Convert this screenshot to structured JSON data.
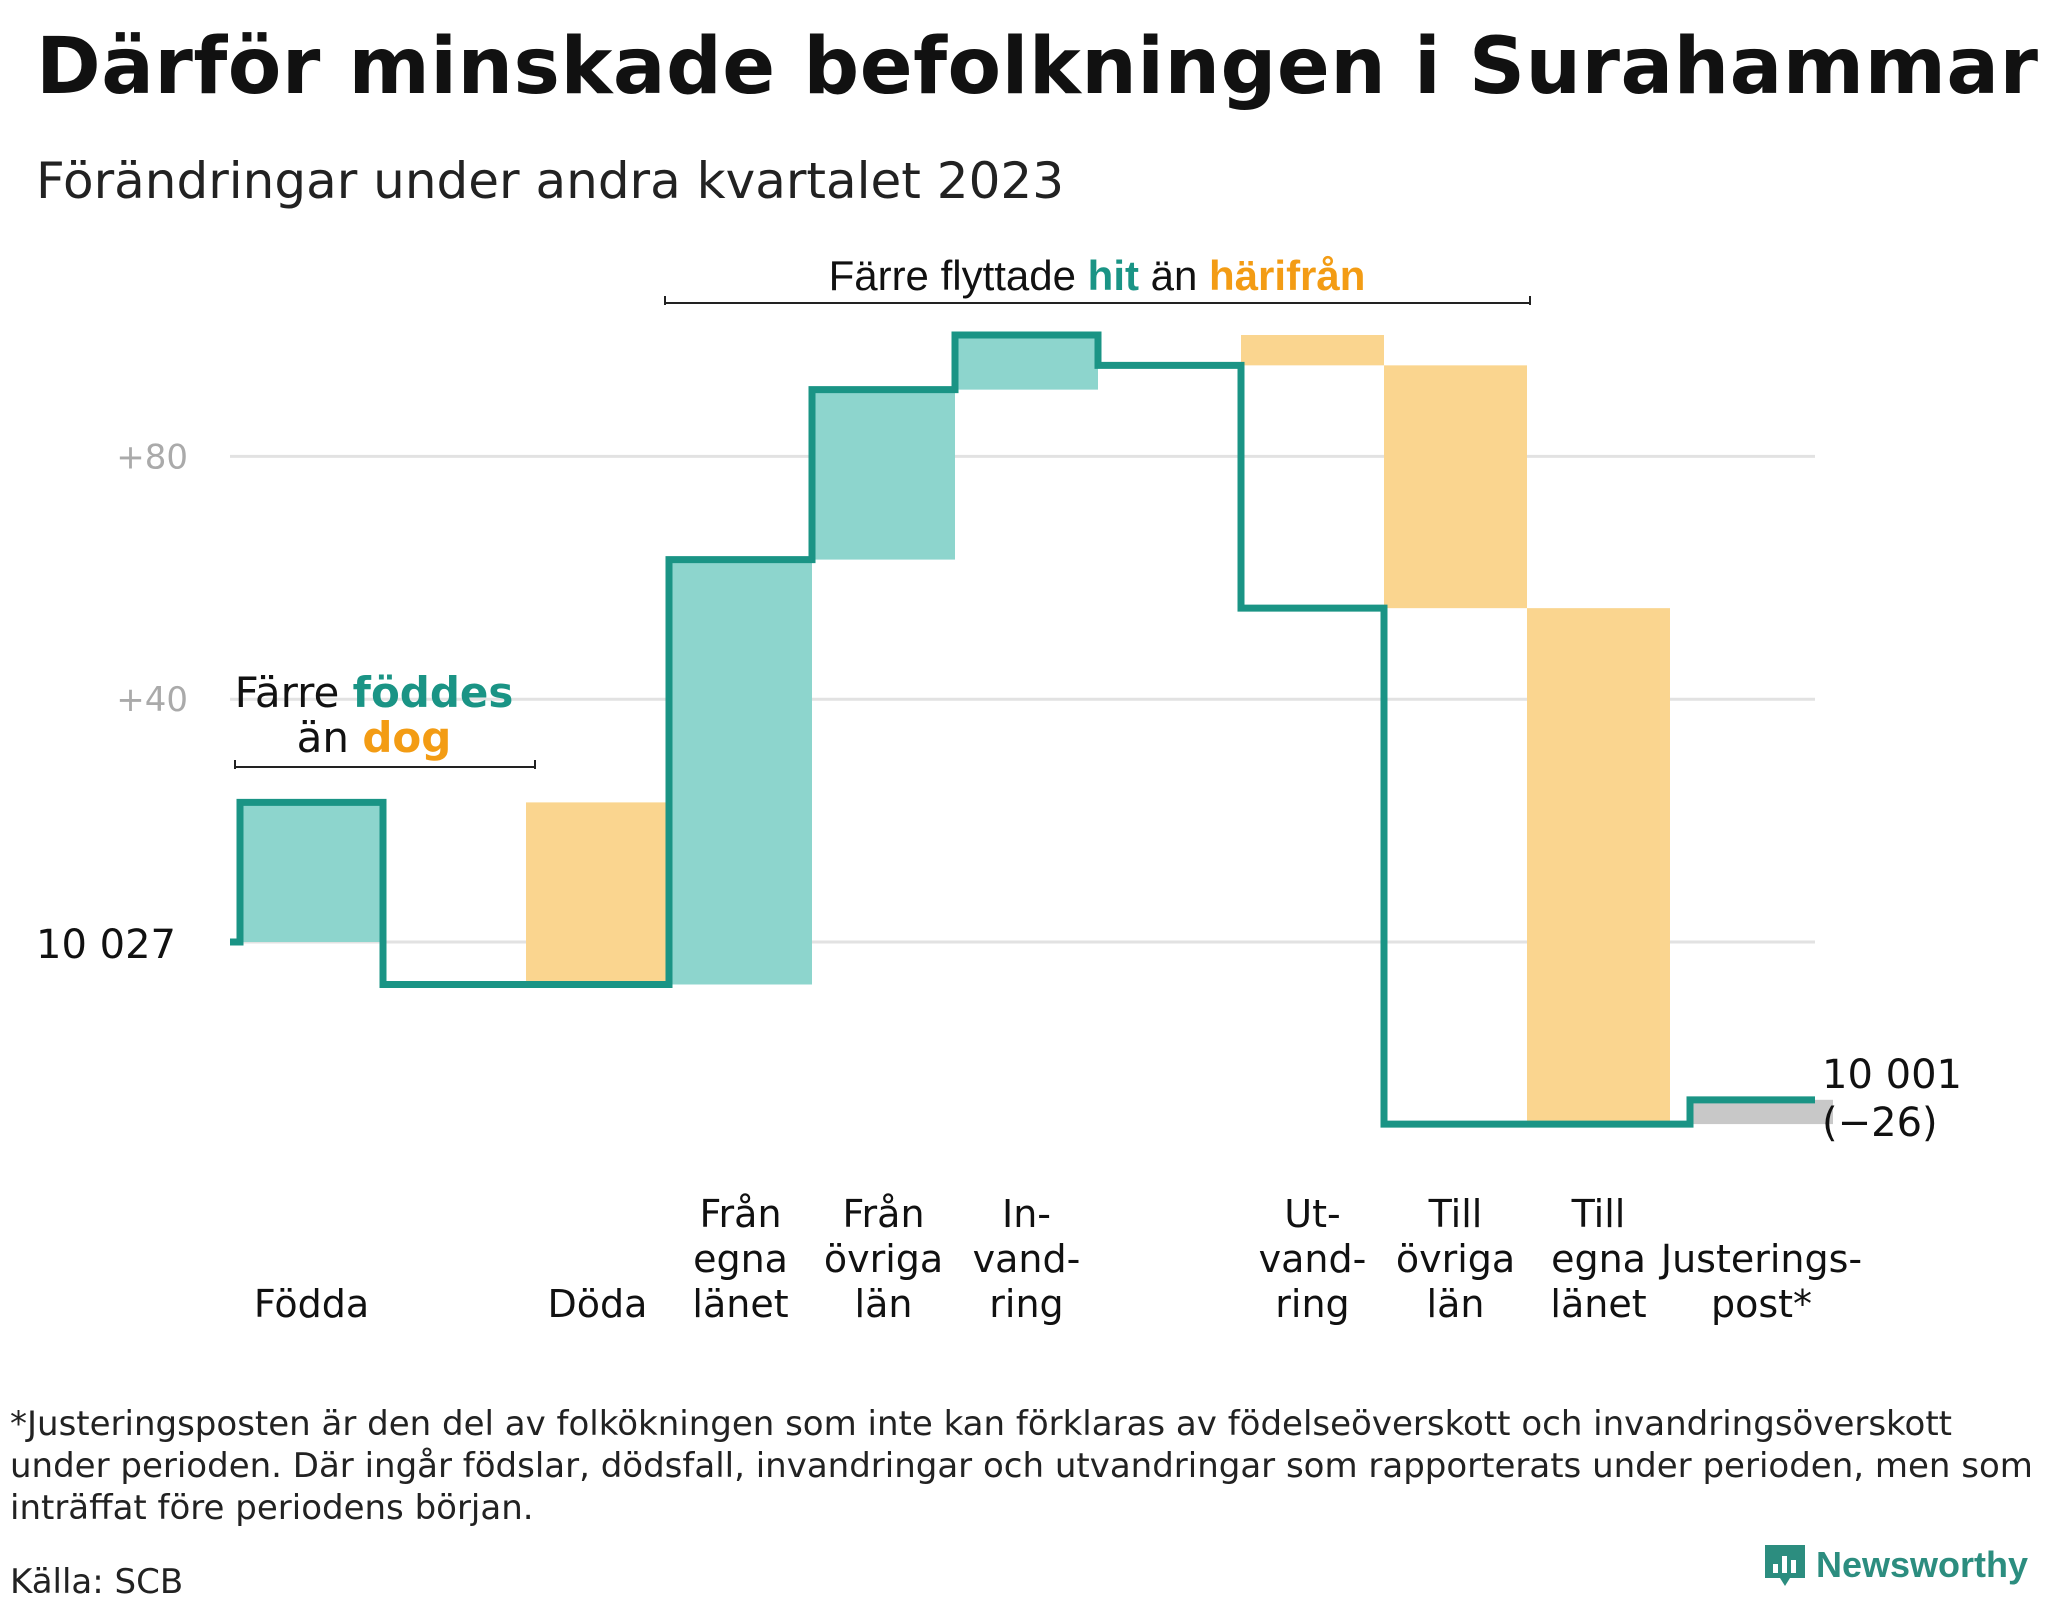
{
  "title": "Därför minskade befolkningen i Surahammar",
  "subtitle": "Förändringar under andra kvartalet 2023",
  "chart_data": {
    "type": "waterfall",
    "start_value": 10027,
    "start_label": "10 027",
    "end_value": 10001,
    "end_label": "10 001",
    "change_label": "(−26)",
    "yticks": [
      {
        "value": 80,
        "label": "+80"
      },
      {
        "value": 40,
        "label": "+40"
      }
    ],
    "grid": true,
    "steps": [
      {
        "label": [
          "Födda"
        ],
        "change": 23,
        "kind": "in"
      },
      {
        "label": [
          "Döda"
        ],
        "change": -30,
        "kind": "out"
      },
      {
        "label": [
          "Från",
          "egna",
          "länet"
        ],
        "change": 70,
        "kind": "in"
      },
      {
        "label": [
          "Från",
          "övriga",
          "län"
        ],
        "change": 28,
        "kind": "in"
      },
      {
        "label": [
          "In-",
          "vand-",
          "ring"
        ],
        "change": 9,
        "kind": "in"
      },
      {
        "label": [
          "Ut-",
          "vand-",
          "ring"
        ],
        "change": -5,
        "kind": "out"
      },
      {
        "label": [
          "Till",
          "övriga",
          "län"
        ],
        "change": -40,
        "kind": "out"
      },
      {
        "label": [
          "Till",
          "egna",
          "länet"
        ],
        "change": -85,
        "kind": "out"
      },
      {
        "label": [
          "Justerings-",
          "post*"
        ],
        "change": 4,
        "kind": "adjustment"
      }
    ],
    "annotations": [
      {
        "id": "births",
        "parts": [
          {
            "text": "Färre ",
            "style": "plain"
          },
          {
            "text": "föddes",
            "style": "in"
          },
          {
            "text": "än ",
            "style": "plain"
          },
          {
            "text": "dog",
            "style": "out"
          }
        ]
      },
      {
        "id": "moves",
        "parts": [
          {
            "text": "Färre flyttade ",
            "style": "plain"
          },
          {
            "text": "hit",
            "style": "in"
          },
          {
            "text": " än ",
            "style": "plain"
          },
          {
            "text": "härifrån",
            "style": "out"
          }
        ]
      }
    ],
    "colors": {
      "in_fill": "#8dd5cd",
      "out_fill": "#fad58f",
      "adjustment_fill": "#c8c8c8",
      "line": "#1a9485",
      "in_text": "#1a9485",
      "out_text": "#f39c14",
      "grid": "#e2e2e2",
      "tick_text": "#aaaaaa"
    }
  },
  "footnote": "*Justeringsposten är den del av folkökningen som inte kan förklaras av födelseöverskott och invandringsöverskott under perioden. Där ingår födslar, dödsfall, invandringar och utvandringar som rapporterats under perioden, men som inträffat före periodens början.",
  "source": "Källa: SCB",
  "brand": "Newsworthy"
}
